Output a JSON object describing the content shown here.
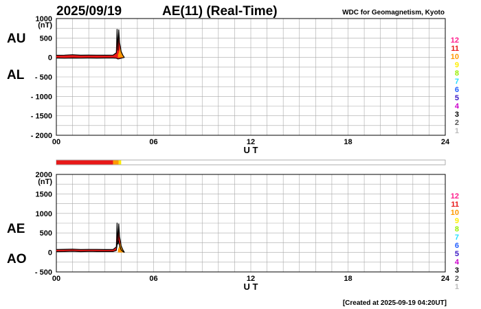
{
  "header": {
    "date": "2025/09/19",
    "title": "AE(11) (Real-Time)",
    "source": "WDC for Geomagnetism, Kyoto"
  },
  "footer": {
    "created": "[Created at 2025-09-19 04:20UT]"
  },
  "level_scale": {
    "labels": [
      "12",
      "11",
      "10",
      "9",
      "8",
      "7",
      "6",
      "5",
      "4",
      "3",
      "2",
      "1"
    ],
    "colors": [
      "#ff1c8c",
      "#e81818",
      "#ff9900",
      "#ffee00",
      "#99ee00",
      "#22ddff",
      "#1e5cff",
      "#3a16c4",
      "#cc00cc",
      "#000000",
      "#555555",
      "#bbbbbb"
    ]
  },
  "status_bar": {
    "segments": [
      {
        "from": 0.0,
        "to": 3.5,
        "level": "11",
        "color": "#e81818"
      },
      {
        "from": 3.5,
        "to": 3.85,
        "level": "10",
        "color": "#ff9900"
      },
      {
        "from": 3.85,
        "to": 4.0,
        "level": "9",
        "color": "#ffee00"
      }
    ]
  },
  "chart_data": [
    {
      "type": "line",
      "panel": "AU/AL",
      "unit": "(nT)",
      "left_labels": [
        "AU",
        "AL"
      ],
      "xlabel": "U T",
      "xlim": [
        0,
        24
      ],
      "xticks": [
        "00",
        "06",
        "12",
        "18",
        "24"
      ],
      "ylim": [
        -2000,
        1000
      ],
      "yticks": [
        "1000",
        "500",
        "0",
        "- 500",
        "- 1000",
        "- 1500",
        "- 2000"
      ],
      "grid": true,
      "series": [
        {
          "name": "AU",
          "color": "#e81818",
          "x": [
            0.0,
            0.5,
            1.0,
            1.5,
            2.0,
            2.5,
            3.0,
            3.5,
            3.7,
            3.75,
            3.8,
            3.85,
            3.9,
            3.95,
            4.0,
            4.1,
            4.2
          ],
          "y": [
            55,
            60,
            70,
            58,
            62,
            60,
            58,
            60,
            120,
            730,
            180,
            720,
            380,
            280,
            150,
            60,
            0
          ]
        },
        {
          "name": "AL",
          "color": "#e81818",
          "x": [
            0.0,
            0.5,
            1.0,
            1.5,
            2.0,
            2.5,
            3.0,
            3.5,
            3.7,
            3.8,
            3.9,
            4.0,
            4.1,
            4.2
          ],
          "y": [
            -15,
            -20,
            -15,
            -18,
            -14,
            -16,
            -15,
            -15,
            -20,
            -40,
            -30,
            -20,
            -10,
            0
          ]
        }
      ]
    },
    {
      "type": "line",
      "panel": "AE/AO",
      "unit": "(nT)",
      "left_labels": [
        "AE",
        "AO"
      ],
      "xlabel": "U T",
      "xlim": [
        0,
        24
      ],
      "xticks": [
        "00",
        "06",
        "12",
        "18",
        "24"
      ],
      "ylim": [
        -500,
        2000
      ],
      "yticks": [
        "2000",
        "1500",
        "1000",
        "500",
        "0",
        "- 500"
      ],
      "grid": true,
      "series": [
        {
          "name": "AE",
          "color": "#e81818",
          "x": [
            0.0,
            0.5,
            1.0,
            1.5,
            2.0,
            2.5,
            3.0,
            3.5,
            3.7,
            3.75,
            3.8,
            3.85,
            3.9,
            3.95,
            4.0,
            4.1,
            4.2
          ],
          "y": [
            75,
            80,
            85,
            76,
            78,
            77,
            74,
            76,
            140,
            760,
            210,
            740,
            400,
            300,
            170,
            70,
            0
          ]
        },
        {
          "name": "AO",
          "color": "#e81818",
          "x": [
            0.0,
            0.5,
            1.0,
            1.5,
            2.0,
            2.5,
            3.0,
            3.5,
            3.7,
            3.8,
            3.9,
            4.0,
            4.1,
            4.2
          ],
          "y": [
            20,
            22,
            28,
            20,
            24,
            22,
            21,
            22,
            50,
            340,
            175,
            65,
            25,
            0
          ]
        }
      ]
    }
  ]
}
